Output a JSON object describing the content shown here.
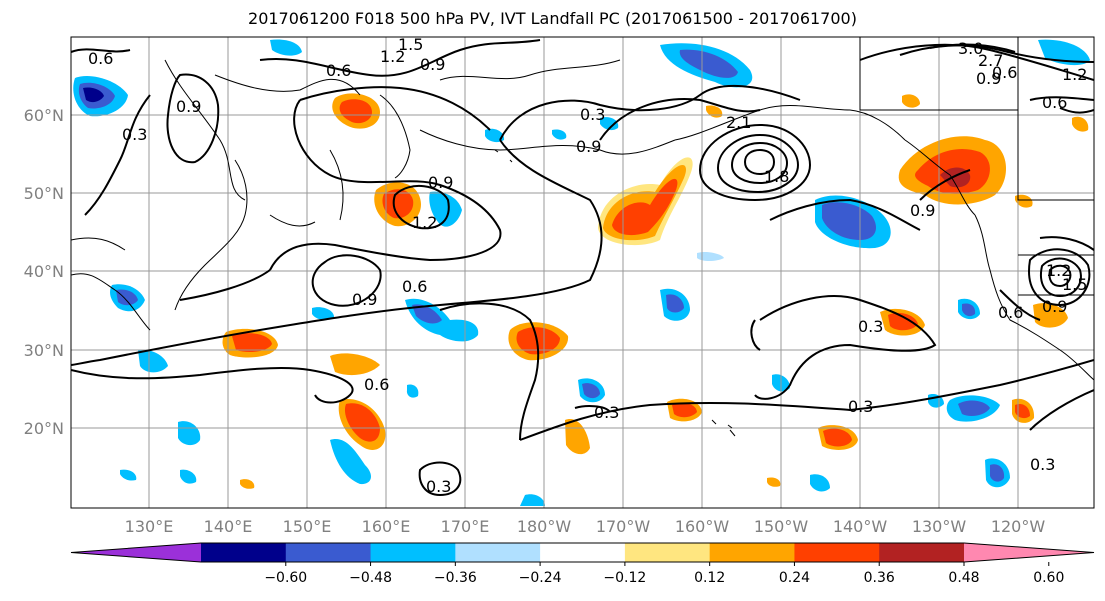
{
  "title": "2017061200 F018 500 hPa PV, IVT Landfall PC (2017061500 - 2017061700)",
  "map": {
    "lat_labels": [
      "60°N",
      "50°N",
      "40°N",
      "30°N",
      "20°N"
    ],
    "lon_labels": [
      "130°E",
      "140°E",
      "150°E",
      "160°E",
      "170°E",
      "180°W",
      "170°W",
      "160°W",
      "150°W",
      "140°W",
      "130°W",
      "120°W"
    ],
    "grid": true
  },
  "contour_labels": [
    "0.6",
    "0.9",
    "0.3",
    "1.2",
    "1.5",
    "0.6",
    "0.9",
    "0.9",
    "1.2",
    "0.6",
    "0.9",
    "0.9",
    "2.1",
    "0.6",
    "0.3",
    "0.3",
    "0.3",
    "0.3",
    "0.6",
    "0.9",
    "0.3",
    "1.5",
    "1.2",
    "0.9",
    "1.8",
    "2.7",
    "3.0",
    "0.6",
    "0.6",
    "0.9",
    "1.2",
    "0.3"
  ],
  "colorbar": {
    "ticks": [
      "−0.60",
      "−0.48",
      "−0.36",
      "−0.24",
      "−0.12",
      "0.12",
      "0.24",
      "0.36",
      "0.48",
      "0.60"
    ],
    "colors": [
      "#9b30d9",
      "#00008b",
      "#3a5bd0",
      "#00bfff",
      "#b0e0ff",
      "#ffffff",
      "#ffe680",
      "#ffa500",
      "#ff4000",
      "#b22222",
      "#ff88b0"
    ]
  }
}
